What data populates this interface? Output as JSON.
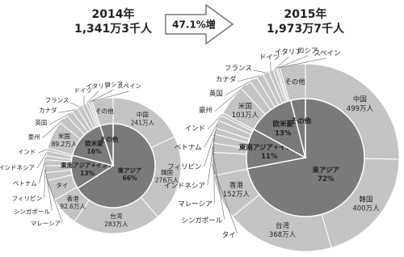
{
  "annotation": "47.1%増",
  "chart_data": [
    {
      "type": "sunburst",
      "title": "2014年",
      "subtitle": "1,341万3千人",
      "inner": {
        "categories": [
          "東アジア",
          "東南アジア+インド",
          "欧米豪",
          "その他"
        ],
        "values": [
          66,
          13,
          16,
          5
        ],
        "value_labels": [
          "66%",
          "13%",
          "16%",
          null
        ],
        "color": "#7a7a7a"
      },
      "outer": {
        "categories": [
          "中国",
          "韓国",
          "台湾",
          "香港",
          "タイ",
          "マレーシア",
          "シンガポール",
          "フィリピン",
          "ベトナム",
          "インドネシア",
          "インド",
          "米国",
          "豪州",
          "英国",
          "カナダ",
          "フランス",
          "ドイツ",
          "イタリア",
          "ロシア",
          "スペイン",
          "その他"
        ],
        "values": [
          241,
          276,
          283,
          92.6,
          65.8,
          25,
          22.8,
          18.4,
          12.4,
          15.9,
          8.8,
          89.2,
          30.3,
          22,
          18.3,
          17.9,
          14,
          8.1,
          6.4,
          6,
          67
        ],
        "value_labels": [
          "241万人",
          "276万人",
          "283万人",
          "92.6万人",
          null,
          null,
          null,
          null,
          null,
          null,
          null,
          "89.2万人",
          null,
          null,
          null,
          null,
          null,
          null,
          null,
          null,
          null
        ],
        "color": "#c4c4c4"
      }
    },
    {
      "type": "sunburst",
      "title": "2015年",
      "subtitle": "1,973万7千人",
      "inner": {
        "categories": [
          "東アジア",
          "東南アジア+インド",
          "欧米豪",
          "その他"
        ],
        "values": [
          72,
          11,
          13,
          4
        ],
        "value_labels": [
          "72%",
          "11%",
          "13%",
          null
        ],
        "color": "#7a7a7a"
      },
      "outer": {
        "categories": [
          "中国",
          "韓国",
          "台湾",
          "香港",
          "タイ",
          "シンガポール",
          "マレーシア",
          "インドネシア",
          "フィリピン",
          "ベトナム",
          "インド",
          "米国",
          "豪州",
          "英国",
          "カナダ",
          "フランス",
          "ドイツ",
          "イタリア",
          "ロシア",
          "スペイン",
          "その他"
        ],
        "values": [
          499,
          400,
          368,
          152,
          79.7,
          30.9,
          30.5,
          20.5,
          26.8,
          18.5,
          10.3,
          103,
          37.6,
          25.8,
          23.1,
          21.4,
          16.3,
          10.3,
          5.4,
          7.7,
          87
        ],
        "value_labels": [
          "499万人",
          "400万人",
          "368万人",
          "152万人",
          null,
          null,
          null,
          null,
          null,
          null,
          null,
          "103万人",
          null,
          null,
          null,
          null,
          null,
          null,
          null,
          null,
          null
        ],
        "color": "#c4c4c4"
      }
    }
  ]
}
